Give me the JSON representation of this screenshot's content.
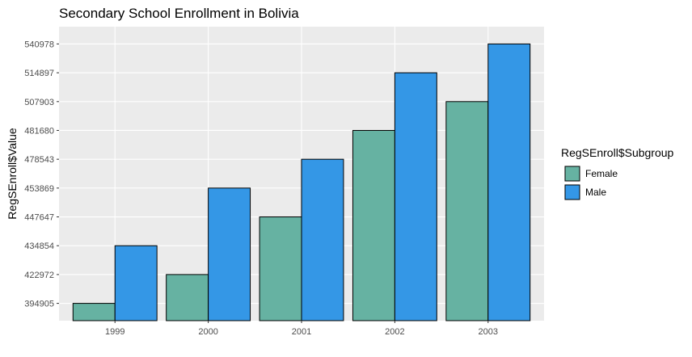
{
  "chart_data": {
    "type": "bar",
    "title": "Secondary School Enrollment in Bolivia",
    "xlabel": "",
    "ylabel": "RegSEnroll$Value",
    "categories": [
      "1999",
      "2000",
      "2001",
      "2002",
      "2003"
    ],
    "y_tick_labels": [
      "394905",
      "422972",
      "434854",
      "447647",
      "453869",
      "478543",
      "481680",
      "507903",
      "514897",
      "540978"
    ],
    "y_axis_discrete": true,
    "series": [
      {
        "name": "Female",
        "color": "#66b2a2",
        "values": [
          394905,
          422972,
          447647,
          481680,
          507903
        ]
      },
      {
        "name": "Male",
        "color": "#3497e6",
        "values": [
          434854,
          453869,
          478543,
          514897,
          540978
        ]
      }
    ],
    "legend": {
      "title": "RegSEnroll$Subgroup",
      "position": "right"
    },
    "grid": true,
    "panel_background": "#ebebeb",
    "grid_color": "#ffffff"
  }
}
